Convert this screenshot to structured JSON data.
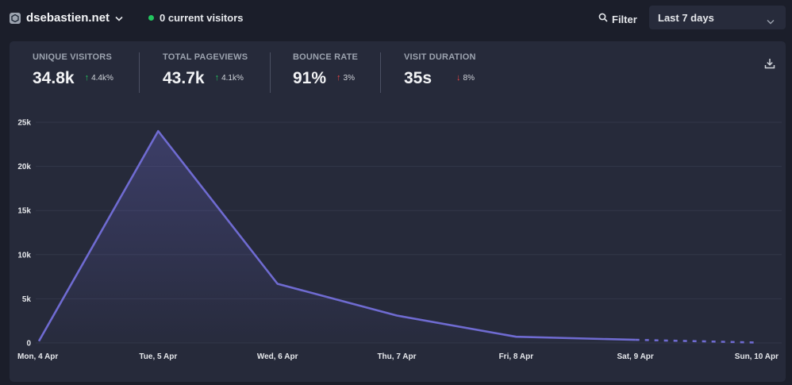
{
  "header": {
    "site_name": "dsebastien.net",
    "current_visitors": "0 current visitors",
    "filter_label": "Filter",
    "period_label": "Last 7 days"
  },
  "stats": [
    {
      "label": "UNIQUE VISITORS",
      "value": "34.8k",
      "arrow": "↑",
      "change": "4.4k%",
      "arrow_color": "green"
    },
    {
      "label": "TOTAL PAGEVIEWS",
      "value": "43.7k",
      "arrow": "↑",
      "change": "4.1k%",
      "arrow_color": "green"
    },
    {
      "label": "BOUNCE RATE",
      "value": "91%",
      "arrow": "↑",
      "change": "3%",
      "arrow_color": "red"
    },
    {
      "label": "VISIT DURATION",
      "value": "35s",
      "arrow": "↓",
      "change": "8%",
      "arrow_color": "red"
    }
  ],
  "icons": {
    "site": "site-favicon-icon",
    "site_menu": "chevron-down-icon",
    "filter": "search-icon",
    "period_menu": "chevron-down-icon",
    "download": "download-icon"
  },
  "colors": {
    "line": "#6f6bd1",
    "live_dot": "#22c55e",
    "up": "#22c55e",
    "down": "#ef4444"
  },
  "chart_data": {
    "type": "line",
    "categories": [
      "Mon, 4 Apr",
      "Tue, 5 Apr",
      "Wed, 6 Apr",
      "Thu, 7 Apr",
      "Fri, 8 Apr",
      "Sat, 9 Apr",
      "Sun, 10 Apr"
    ],
    "series": [
      {
        "values": [
          200,
          24000,
          6700,
          3100,
          700,
          350,
          50
        ]
      }
    ],
    "incomplete_from_index": 5,
    "yticks": [
      "0",
      "5k",
      "10k",
      "15k",
      "20k",
      "25k"
    ],
    "ylim": [
      0,
      25000
    ],
    "grid": true,
    "legend": "none"
  }
}
